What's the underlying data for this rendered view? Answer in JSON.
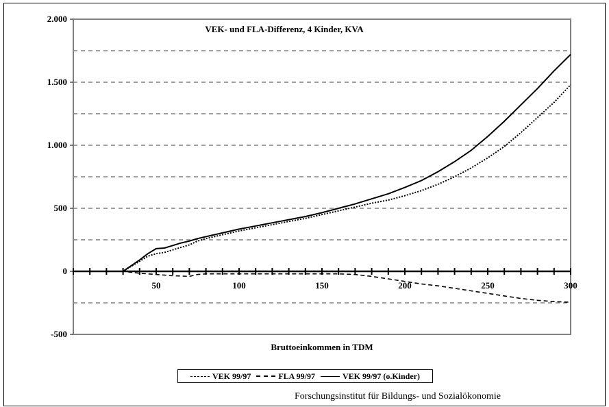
{
  "chart_data": {
    "type": "line",
    "title": "VEK- und FLA-Differenz, 4 Kinder, KVA",
    "xlabel": "Bruttoeinkommen in TDM",
    "ylabel": "",
    "xlim": [
      0,
      300
    ],
    "ylim": [
      -500,
      2000
    ],
    "x_ticks": [
      50,
      100,
      150,
      200,
      250,
      300
    ],
    "y_ticks": [
      -500,
      0,
      500,
      1000,
      1500,
      2000
    ],
    "y_tick_labels": [
      "-500",
      "0",
      "500",
      "1.000",
      "1.500",
      "2.000"
    ],
    "x_tick_labels": [
      "50",
      "100",
      "150",
      "200",
      "250",
      "300"
    ],
    "gridlines_y": [
      -250,
      250,
      500,
      750,
      1000,
      1250,
      1500,
      1750
    ],
    "series": [
      {
        "name": "VEK 99/97",
        "style": "dashed-fine",
        "color": "#000000",
        "x": [
          0,
          30,
          40,
          50,
          60,
          70,
          75,
          80,
          90,
          100,
          110,
          120,
          130,
          140,
          150,
          160,
          170,
          180,
          190,
          200,
          210,
          220,
          230,
          240,
          250,
          260,
          270,
          280,
          290,
          300
        ],
        "y": [
          0,
          0,
          -15,
          -25,
          -35,
          -40,
          -25,
          -20,
          -20,
          -20,
          -20,
          -20,
          -20,
          -20,
          -20,
          -20,
          -25,
          -40,
          -60,
          -80,
          -100,
          -115,
          -135,
          -155,
          -175,
          -195,
          -215,
          -230,
          -240,
          -245
        ]
      },
      {
        "name": "FLA 99/97",
        "style": "dotted",
        "color": "#000000",
        "x": [
          0,
          30,
          40,
          45,
          50,
          55,
          60,
          65,
          70,
          75,
          80,
          90,
          100,
          110,
          120,
          130,
          140,
          150,
          160,
          170,
          180,
          190,
          200,
          210,
          220,
          230,
          240,
          250,
          260,
          270,
          280,
          290,
          300
        ],
        "y": [
          0,
          0,
          80,
          120,
          140,
          150,
          170,
          190,
          210,
          240,
          260,
          290,
          320,
          345,
          370,
          395,
          420,
          450,
          480,
          510,
          540,
          565,
          600,
          640,
          690,
          750,
          820,
          900,
          990,
          1100,
          1220,
          1340,
          1480
        ]
      },
      {
        "name": "VEK 99/97 (o.Kinder)",
        "style": "solid",
        "color": "#000000",
        "x": [
          0,
          30,
          40,
          45,
          50,
          55,
          60,
          65,
          70,
          75,
          80,
          90,
          100,
          110,
          120,
          130,
          140,
          150,
          160,
          170,
          180,
          190,
          200,
          210,
          220,
          230,
          240,
          250,
          260,
          270,
          280,
          290,
          300
        ],
        "y": [
          0,
          0,
          90,
          140,
          180,
          185,
          205,
          225,
          240,
          260,
          275,
          305,
          335,
          360,
          385,
          410,
          435,
          465,
          500,
          535,
          575,
          615,
          665,
          720,
          790,
          870,
          960,
          1070,
          1190,
          1320,
          1450,
          1590,
          1720
        ]
      }
    ],
    "legend_position": "bottom-center"
  },
  "legend": {
    "items": [
      {
        "label": "VEK 99/97"
      },
      {
        "label": "FLA 99/97"
      },
      {
        "label": "VEK 99/97 (o.Kinder)"
      }
    ]
  },
  "source_note": "Forschungsinstitut für Bildungs- und Sozialökonomie"
}
